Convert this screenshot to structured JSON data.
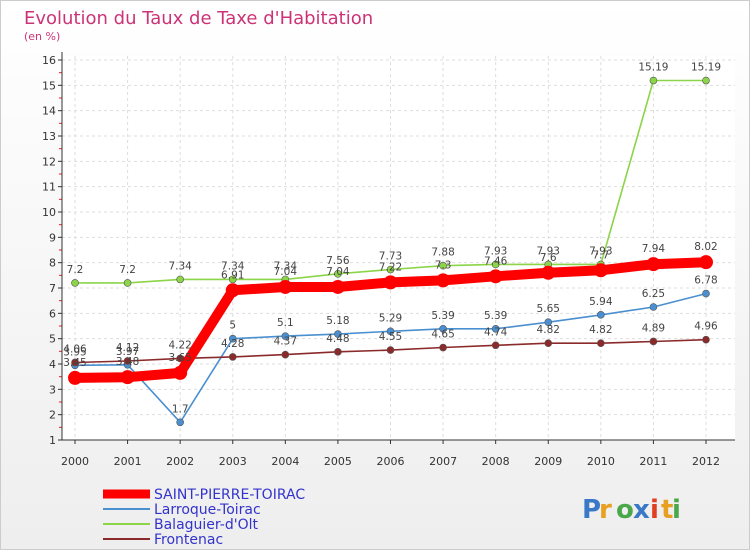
{
  "chart_data": {
    "type": "line",
    "title": "Evolution du Taux de Taxe d'Habitation",
    "subtitle": "(en %)",
    "x": [
      "2000",
      "2001",
      "2002",
      "2003",
      "2004",
      "2005",
      "2006",
      "2007",
      "2008",
      "2009",
      "2010",
      "2011",
      "2012"
    ],
    "ylim": [
      1,
      16
    ],
    "yticks": [
      1,
      2,
      3,
      4,
      5,
      6,
      7,
      8,
      9,
      10,
      11,
      12,
      13,
      14,
      15,
      16
    ],
    "grid": true,
    "legend_position": "bottom-left",
    "series": [
      {
        "name": "SAINT-PIERRE-TOIRAC",
        "color": "#ff0000",
        "values": [
          3.45,
          3.48,
          3.65,
          6.91,
          7.04,
          7.04,
          7.22,
          7.3,
          7.46,
          7.6,
          7.7,
          7.94,
          8.02
        ]
      },
      {
        "name": "Larroque-Toirac",
        "color": "#4a8fd0",
        "values": [
          3.95,
          3.97,
          1.7,
          5.0,
          5.1,
          5.18,
          5.29,
          5.39,
          5.39,
          5.65,
          5.94,
          6.25,
          6.78
        ]
      },
      {
        "name": "Balaguier-d'Olt",
        "color": "#8cd448",
        "values": [
          7.2,
          7.2,
          7.34,
          7.34,
          7.34,
          7.56,
          7.73,
          7.88,
          7.93,
          7.93,
          7.93,
          15.19,
          15.19
        ]
      },
      {
        "name": "Frontenac",
        "color": "#8b2a2a",
        "values": [
          4.06,
          4.12,
          4.22,
          4.28,
          4.37,
          4.48,
          4.55,
          4.65,
          4.74,
          4.82,
          4.82,
          4.89,
          4.96
        ]
      }
    ],
    "labels": [
      {
        "series": 0,
        "text": [
          "3.45",
          "3.48",
          "3.65",
          "6.91",
          "7.04",
          "7.04",
          "7.22",
          "7.3",
          "7.46",
          "7.6",
          "7.7",
          "7.94",
          "8.02"
        ]
      },
      {
        "series": 1,
        "text": [
          "3.95",
          "3.97",
          "1.7",
          "5",
          "5.1",
          "5.18",
          "5.29",
          "5.39",
          "5.39",
          "5.65",
          "5.94",
          "6.25",
          "6.78"
        ]
      },
      {
        "series": 2,
        "text": [
          "7.2",
          "7.2",
          "7.34",
          "7.34",
          "7.34",
          "7.56",
          "7.73",
          "7.88",
          "7.93",
          "7.93",
          "7.93",
          "15.19",
          "15.19"
        ]
      },
      {
        "series": 3,
        "text": [
          "4.06",
          "4.12",
          "4.22",
          "4.28",
          "4.37",
          "4.48",
          "4.55",
          "4.65",
          "4.74",
          "4.82",
          "4.82",
          "4.89",
          "4.96"
        ]
      }
    ]
  },
  "logo": {
    "text": "Proxiti"
  }
}
